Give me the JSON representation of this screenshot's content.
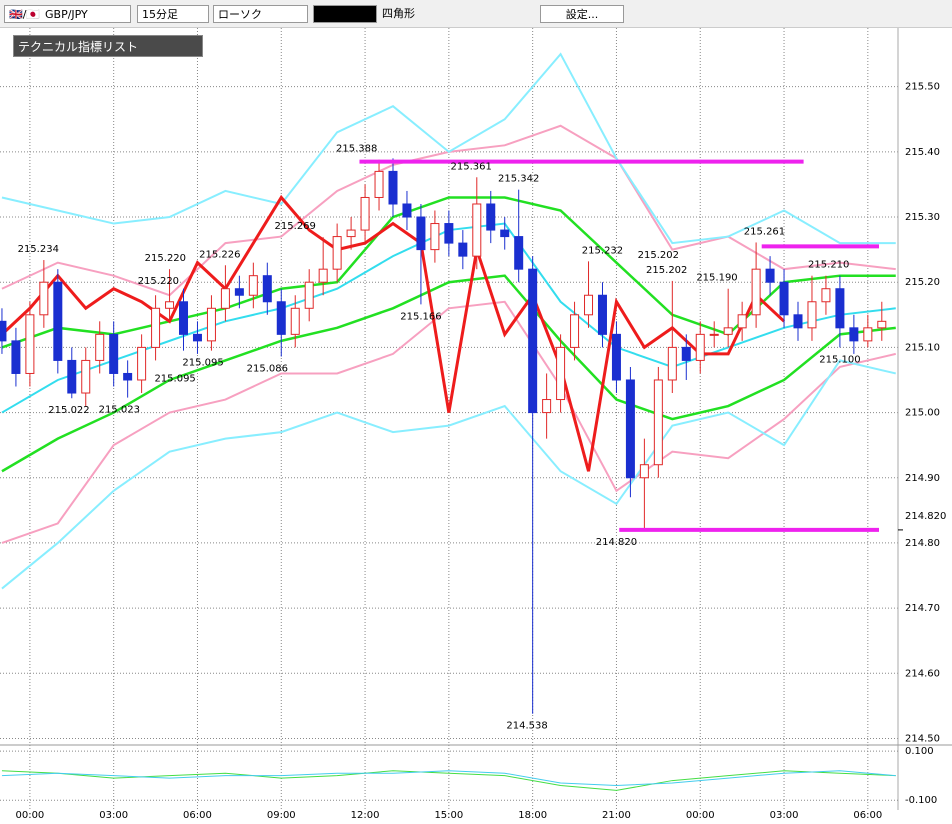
{
  "toolbar": {
    "symbol": "GBP/JPY",
    "timeframe": "15分足",
    "chart_style": "ローソク",
    "drawing_tool": "四角形",
    "settings": "設定..."
  },
  "indicator_panel": {
    "title": "テクニカル指標リスト"
  },
  "chart_data": {
    "type": "candlestick",
    "xlim": [
      -1.07,
      31.08
    ],
    "xticks": [
      {
        "value": 0,
        "label": "00:00"
      },
      {
        "value": 3,
        "label": "03:00"
      },
      {
        "value": 6,
        "label": "06:00"
      },
      {
        "value": 9,
        "label": "09:00"
      },
      {
        "value": 12,
        "label": "12:00"
      },
      {
        "value": 15,
        "label": "15:00"
      },
      {
        "value": 18,
        "label": "18:00"
      },
      {
        "value": 21,
        "label": "21:00"
      },
      {
        "value": 24,
        "label": "00:00"
      },
      {
        "value": 27,
        "label": "03:00"
      },
      {
        "value": 30,
        "label": "06:00"
      }
    ],
    "ylim": [
      214.49,
      215.59
    ],
    "yticks": [
      {
        "value": 215.5,
        "label": "215.50"
      },
      {
        "value": 215.4,
        "label": "215.40"
      },
      {
        "value": 215.3,
        "label": "215.30"
      },
      {
        "value": 215.2,
        "label": "215.20"
      },
      {
        "value": 215.1,
        "label": "215.10"
      },
      {
        "value": 215,
        "label": "215.00"
      },
      {
        "value": 214.9,
        "label": "214.90"
      },
      {
        "value": 214.8,
        "label": "214.80"
      },
      {
        "value": 214.7,
        "label": "214.70"
      },
      {
        "value": 214.6,
        "label": "214.60"
      },
      {
        "value": 214.5,
        "label": "214.50"
      }
    ],
    "grid": true,
    "up_color": "#e02828",
    "down_color": "#1a2fd0",
    "price_marker": {
      "value": 214.82,
      "label": "214.820"
    },
    "candles": {
      "x": [
        -1,
        -0.5,
        0,
        0.5,
        1,
        1.5,
        2,
        2.5,
        3,
        3.5,
        4,
        4.5,
        5,
        5.5,
        6,
        6.5,
        7,
        7.5,
        8,
        8.5,
        9,
        9.5,
        10,
        10.5,
        11,
        11.5,
        12,
        12.5,
        13,
        13.5,
        14,
        14.5,
        15,
        15.5,
        16,
        16.5,
        17,
        17.5,
        18,
        18.5,
        19,
        19.5,
        20,
        20.5,
        21,
        21.5,
        22,
        22.5,
        23,
        23.5,
        24,
        24.5,
        25,
        25.5,
        26,
        26.5,
        27,
        27.5,
        28,
        28.5,
        29,
        29.5,
        30,
        30.5
      ],
      "open": [
        215.14,
        215.11,
        215.06,
        215.15,
        215.2,
        215.08,
        215.03,
        215.08,
        215.12,
        215.06,
        215.05,
        215.1,
        215.16,
        215.17,
        215.12,
        215.11,
        215.16,
        215.19,
        215.18,
        215.21,
        215.17,
        215.12,
        215.16,
        215.2,
        215.22,
        215.27,
        215.28,
        215.33,
        215.37,
        215.32,
        215.3,
        215.25,
        215.29,
        215.26,
        215.24,
        215.32,
        215.28,
        215.27,
        215.22,
        215,
        215.02,
        215.1,
        215.15,
        215.18,
        215.12,
        215.05,
        214.9,
        214.92,
        215.05,
        215.1,
        215.08,
        215.12,
        215.12,
        215.13,
        215.15,
        215.22,
        215.2,
        215.15,
        215.13,
        215.17,
        215.19,
        215.13,
        215.11,
        215.13
      ],
      "high": [
        215.16,
        215.13,
        215.17,
        215.234,
        215.22,
        215.1,
        215.1,
        215.14,
        215.14,
        215.08,
        215.12,
        215.18,
        215.22,
        215.19,
        215.14,
        215.18,
        215.226,
        215.21,
        215.23,
        215.23,
        215.19,
        215.18,
        215.22,
        215.269,
        215.29,
        215.3,
        215.35,
        215.388,
        215.39,
        215.34,
        215.32,
        215.31,
        215.31,
        215.28,
        215.361,
        215.34,
        215.3,
        215.342,
        215.24,
        215.06,
        215.12,
        215.17,
        215.232,
        215.2,
        215.14,
        215.07,
        214.96,
        215.07,
        215.202,
        215.12,
        215.14,
        215.14,
        215.19,
        215.17,
        215.261,
        215.24,
        215.22,
        215.17,
        215.21,
        215.21,
        215.21,
        215.15,
        215.15,
        215.17
      ],
      "low": [
        215.09,
        215.04,
        215.04,
        215.13,
        215.06,
        215.022,
        215.01,
        215.06,
        215.04,
        215.023,
        215.03,
        215.08,
        215.14,
        215.095,
        215.09,
        215.095,
        215.14,
        215.16,
        215.16,
        215.15,
        215.086,
        215.1,
        215.14,
        215.18,
        215.2,
        215.25,
        215.26,
        215.31,
        215.3,
        215.28,
        215.166,
        215.23,
        215.24,
        215.22,
        215.22,
        215.26,
        215.25,
        215.2,
        214.538,
        214.96,
        215,
        215.08,
        215.13,
        215.1,
        215.03,
        214.87,
        214.82,
        214.9,
        215.03,
        215.05,
        215.06,
        215.1,
        215.1,
        215.11,
        215.13,
        215.18,
        215.13,
        215.11,
        215.11,
        215.15,
        215.1,
        215.09,
        215.1,
        215.11
      ],
      "close": [
        215.11,
        215.06,
        215.15,
        215.2,
        215.08,
        215.03,
        215.08,
        215.12,
        215.06,
        215.05,
        215.1,
        215.16,
        215.17,
        215.12,
        215.11,
        215.16,
        215.19,
        215.18,
        215.21,
        215.17,
        215.12,
        215.16,
        215.2,
        215.22,
        215.27,
        215.28,
        215.33,
        215.37,
        215.32,
        215.3,
        215.25,
        215.29,
        215.26,
        215.24,
        215.32,
        215.28,
        215.27,
        215.22,
        215,
        215.02,
        215.1,
        215.15,
        215.18,
        215.12,
        215.05,
        214.9,
        214.92,
        215.05,
        215.1,
        215.08,
        215.12,
        215.12,
        215.13,
        215.15,
        215.22,
        215.2,
        215.15,
        215.13,
        215.17,
        215.19,
        215.13,
        215.11,
        215.13,
        215.14
      ]
    },
    "line_x": [
      -1,
      1,
      3,
      5,
      7,
      9,
      11,
      13,
      15,
      17,
      19,
      21,
      23,
      25,
      27,
      29,
      31
    ],
    "overlays": [
      {
        "color": "#f7a0c0",
        "values": [
          215.19,
          215.23,
          215.21,
          215.18,
          215.26,
          215.27,
          215.34,
          215.38,
          215.4,
          215.41,
          215.44,
          215.39,
          215.25,
          215.27,
          215.22,
          215.23,
          215.22
        ]
      },
      {
        "color": "#f7a0c0",
        "values": [
          214.8,
          214.83,
          214.95,
          215,
          215.02,
          215.06,
          215.06,
          215.09,
          215.16,
          215.17,
          215.04,
          214.88,
          214.94,
          214.93,
          214.99,
          215.07,
          215.09
        ]
      },
      {
        "color": "#88eeff",
        "values": [
          215.33,
          215.31,
          215.29,
          215.3,
          215.34,
          215.32,
          215.43,
          215.47,
          215.4,
          215.45,
          215.55,
          215.39,
          215.26,
          215.27,
          215.31,
          215.26,
          215.26
        ]
      },
      {
        "color": "#88eeff",
        "values": [
          214.73,
          214.8,
          214.88,
          214.94,
          214.96,
          214.97,
          215,
          214.97,
          214.98,
          215.01,
          214.91,
          214.86,
          214.98,
          215,
          214.95,
          215.08,
          215.06
        ]
      },
      {
        "color": "#22e022",
        "values": [
          215.1,
          215.13,
          215.12,
          215.14,
          215.16,
          215.19,
          215.2,
          215.3,
          215.33,
          215.33,
          215.31,
          215.23,
          215.15,
          215.12,
          215.2,
          215.21,
          215.21
        ]
      },
      {
        "color": "#22e022",
        "values": [
          214.91,
          214.96,
          215,
          215.05,
          215.08,
          215.11,
          215.13,
          215.16,
          215.2,
          215.21,
          215.11,
          215.02,
          214.99,
          215.01,
          215.05,
          215.12,
          215.13
        ]
      },
      {
        "color": "#33ddee",
        "values": [
          215,
          215.05,
          215.08,
          215.11,
          215.14,
          215.16,
          215.19,
          215.24,
          215.28,
          215.29,
          215.17,
          215.1,
          215.07,
          215.1,
          215.13,
          215.15,
          215.16
        ]
      },
      {
        "color": "#ee1c1c",
        "x": [
          -1,
          0,
          1,
          2,
          3,
          4,
          5,
          6,
          7,
          8,
          9,
          10,
          11,
          12,
          13,
          14,
          15,
          16,
          17,
          18,
          19,
          20,
          21,
          22,
          23,
          24,
          25,
          26,
          27
        ],
        "values": [
          215.12,
          215.16,
          215.21,
          215.16,
          215.19,
          215.17,
          215.14,
          215.23,
          215.19,
          215.26,
          215.33,
          215.28,
          215.25,
          215.26,
          215.29,
          215.26,
          215,
          215.25,
          215.12,
          215.18,
          215.07,
          214.91,
          215.17,
          215.1,
          215.13,
          215.09,
          215.09,
          215.18,
          215.14
        ]
      }
    ],
    "levels": [
      {
        "value": 215.385,
        "x": [
          11.8,
          27.7
        ]
      },
      {
        "value": 215.255,
        "x": [
          26.2,
          30.4
        ]
      },
      {
        "value": 214.82,
        "x": [
          21.1,
          30.4
        ]
      }
    ],
    "level_color": "#ee22ee",
    "annotations": [
      {
        "label": "215.234",
        "value": 215.234,
        "x": 0.3,
        "side": "above"
      },
      {
        "label": "215.022",
        "value": 215.022,
        "x": 1.4,
        "side": "below"
      },
      {
        "label": "215.023",
        "value": 215.023,
        "x": 3.2,
        "side": "below"
      },
      {
        "label": "215.220",
        "value": 215.22,
        "x": 4.85,
        "side": "above"
      },
      {
        "label": "215.220",
        "value": 215.22,
        "x": 4.6,
        "side": "below"
      },
      {
        "label": "215.095",
        "value": 215.095,
        "x": 6.2,
        "side": "below"
      },
      {
        "label": "215.095",
        "value": 215.095,
        "x": 5.2,
        "side": "below2"
      },
      {
        "label": "215.226",
        "value": 215.226,
        "x": 6.8,
        "side": "above"
      },
      {
        "label": "215.086",
        "value": 215.086,
        "x": 8.5,
        "side": "below"
      },
      {
        "label": "215.269",
        "value": 215.269,
        "x": 9.5,
        "side": "above"
      },
      {
        "label": "215.388",
        "value": 215.388,
        "x": 11.7,
        "side": "above"
      },
      {
        "label": "215.166",
        "value": 215.166,
        "x": 14,
        "side": "below"
      },
      {
        "label": "215.361",
        "value": 215.361,
        "x": 15.8,
        "side": "above"
      },
      {
        "label": "215.342",
        "value": 215.342,
        "x": 17.5,
        "side": "above"
      },
      {
        "label": "214.538",
        "value": 214.538,
        "x": 17.8,
        "side": "below"
      },
      {
        "label": "215.232",
        "value": 215.232,
        "x": 20.5,
        "side": "above"
      },
      {
        "label": "215.202",
        "value": 215.202,
        "x": 22.5,
        "side": "above2"
      },
      {
        "label": "215.202",
        "value": 215.202,
        "x": 22.8,
        "side": "above"
      },
      {
        "label": "215.190",
        "value": 215.19,
        "x": 24.6,
        "side": "above"
      },
      {
        "label": "214.820",
        "value": 214.82,
        "x": 21,
        "side": "below"
      },
      {
        "label": "215.261",
        "value": 215.261,
        "x": 26.3,
        "side": "above"
      },
      {
        "label": "215.210",
        "value": 215.21,
        "x": 28.6,
        "side": "above"
      },
      {
        "label": "215.100",
        "value": 215.1,
        "x": 29,
        "side": "below"
      }
    ],
    "oscillator": {
      "ylim": [
        -0.14,
        0.125
      ],
      "yticks": [
        {
          "value": 0.1,
          "label": "0.100"
        },
        {
          "value": -0.1,
          "label": "-0.100"
        }
      ],
      "series": [
        {
          "color": "#44dd44",
          "values": [
            0.02,
            0.01,
            -0.01,
            0,
            0.01,
            -0.01,
            0,
            0.02,
            0.01,
            0,
            -0.04,
            -0.06,
            -0.02,
            0,
            0.02,
            0.01,
            0
          ]
        },
        {
          "color": "#44ccee",
          "values": [
            0,
            0.01,
            0,
            -0.01,
            0,
            0,
            0.01,
            0.01,
            0.02,
            0.01,
            -0.03,
            -0.04,
            -0.03,
            -0.01,
            0.01,
            0.02,
            0
          ]
        }
      ]
    }
  }
}
